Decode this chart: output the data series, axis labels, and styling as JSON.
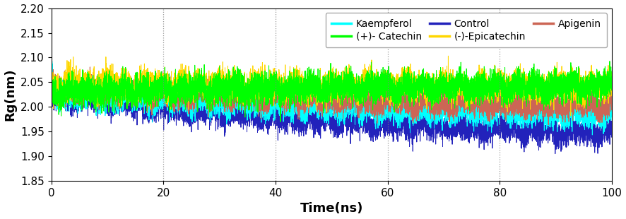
{
  "title": "",
  "xlabel": "Time(ns)",
  "ylabel": "Rg(nm)",
  "xlim": [
    0,
    100
  ],
  "ylim": [
    1.85,
    2.2
  ],
  "yticks": [
    1.85,
    1.9,
    1.95,
    2.0,
    2.05,
    2.1,
    2.15,
    2.2
  ],
  "xticks": [
    0,
    20,
    40,
    60,
    80,
    100
  ],
  "vlines": [
    20,
    40,
    60,
    80
  ],
  "series_order": [
    "Control",
    "Kaempferol",
    "Apigenin",
    "(-)-Epicatechin",
    "(+)- Catechin"
  ],
  "series": {
    "Kaempferol": {
      "color": "#00FFFF",
      "mean_start": 2.03,
      "mean_end": 1.975,
      "noise": 0.013,
      "spike": true
    },
    "(-)-Epicatechin": {
      "color": "#FFD700",
      "mean_start": 2.045,
      "mean_end": 2.04,
      "noise": 0.015,
      "spike": false
    },
    "(+)- Catechin": {
      "color": "#00FF00",
      "mean_start": 2.03,
      "mean_end": 2.045,
      "noise": 0.015,
      "spike": false
    },
    "Apigenin": {
      "color": "#CC6655",
      "mean_start": 2.04,
      "mean_end": 1.995,
      "noise": 0.013,
      "spike": false
    },
    "Control": {
      "color": "#2222BB",
      "mean_start": 2.025,
      "mean_end": 1.93,
      "noise": 0.013,
      "spike": false
    }
  },
  "n_points": 8000,
  "legend_order": [
    "Kaempferol",
    "(+)- Catechin",
    "Control",
    "(-)-Epicatechin",
    "Apigenin"
  ],
  "legend_ncol": 3,
  "legend_fontsize": 10,
  "axis_fontsize": 13,
  "tick_fontsize": 11,
  "linewidth": 0.7,
  "background_color": "#ffffff"
}
